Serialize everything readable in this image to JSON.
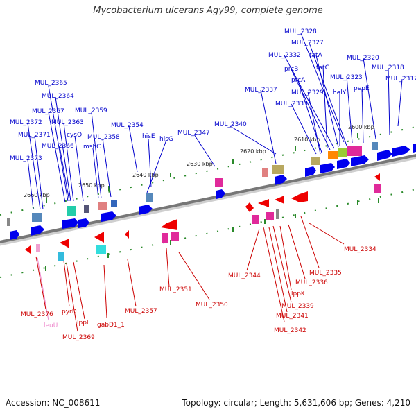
{
  "title": "Mycobacterium ulcerans Agy99, complete genome",
  "footer": {
    "accession": "Accession: NC_008611",
    "summary": "Topology: circular; Length: 5,631,606 bp; Genes: 4,210"
  },
  "colors": {
    "backbone": "#7a7a7a",
    "forward_label": "#0000cc",
    "reverse_label": "#cc0000",
    "forward_arrow": "#0000ee",
    "reverse_arrow": "#ee0000",
    "tick": "#2a8a2a",
    "leuU": "#ee88cc"
  },
  "scale_labels": [
    "2600 kbp",
    "2610 kbp",
    "2620 kbp",
    "2630 kbp",
    "2640 kbp",
    "2650 kbp",
    "2660 kbp"
  ],
  "forward_labels": [
    "MUL_2328",
    "MUL_2327",
    "MUL_2332",
    "tatA",
    "MUL_2320",
    "prcB",
    "tatC",
    "MUL_2318",
    "prcA",
    "MUL_2323",
    "MUL_2317",
    "MUL_2337",
    "MUL_2329",
    "helY",
    "pepE",
    "MUL_2333",
    "MUL_2365",
    "MUL_2364",
    "MUL_2367",
    "MUL_2359",
    "MUL_2372",
    "MUL_2363",
    "MUL_2340",
    "MUL_2354",
    "MUL_2347",
    "cysQ",
    "MUL_2371",
    "MUL_2358",
    "hisE",
    "hisG",
    "MUL_2366",
    "mshC",
    "MUL_2373"
  ],
  "reverse_labels": [
    "MUL_2334",
    "MUL_2335",
    "MUL_2344",
    "MUL_2336",
    "MUL_2351",
    "lppK",
    "MUL_2350",
    "MUL_2339",
    "MUL_2357",
    "MUL_2341",
    "MUL_2376",
    "pyrD",
    "gabD1_1",
    "lppL",
    "leuU",
    "MUL_2342",
    "MUL_2369"
  ]
}
